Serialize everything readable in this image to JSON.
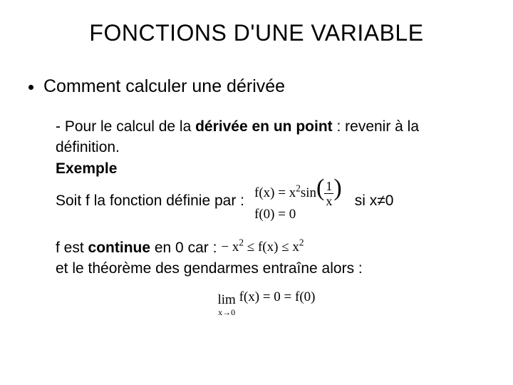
{
  "title": "FONCTIONS D'UNE VARIABLE",
  "bullet": "Comment calculer une dérivée",
  "body": {
    "line1_prefix": "- Pour le calcul de la ",
    "line1_bold": "dérivée en un point",
    "line1_suffix": " : revenir à la",
    "line2": "définition.",
    "exemple": "Exemple",
    "soit_prefix": "Soit f la fonction définie par :",
    "fx_eq": "f(x) = x",
    "fx_sup": "2",
    "fx_sin": "sin",
    "frac_num": "1",
    "frac_den": "x",
    "f0": "f(0) = 0",
    "si_suffix": "si x≠0",
    "cont_prefix": "f est ",
    "cont_bold": "continue",
    "cont_suffix": " en 0 car :",
    "ineq_left": "− x",
    "ineq_sup": "2",
    "ineq_mid1": " ≤ f(x) ≤ x",
    "theorem": "et le théorème des gendarmes entraîne alors :",
    "lim_word": "lim",
    "lim_sub": "x→0",
    "lim_rhs": "f(x) = 0 = f(0)"
  },
  "colors": {
    "background": "#ffffff",
    "text": "#000000"
  },
  "fonts": {
    "title_size": 32,
    "bullet_size": 25,
    "body_size": 21,
    "math_family": "Times New Roman"
  }
}
